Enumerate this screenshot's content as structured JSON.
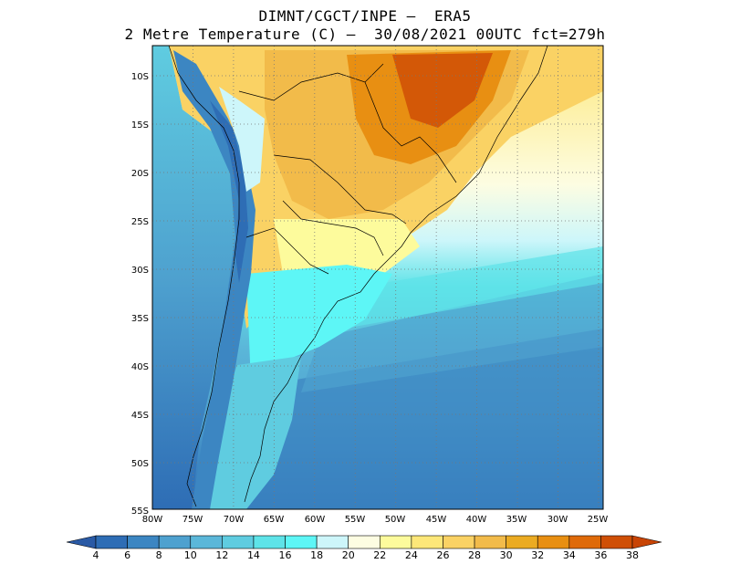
{
  "title": {
    "line1": "DIMNT/CGCT/INPE –  ERA5",
    "line2": "2 Metre Temperature (C) –  30/08/2021 00UTC fct=279h"
  },
  "lat_labels": [
    "10S",
    "15S",
    "20S",
    "25S",
    "30S",
    "35S",
    "40S",
    "45S",
    "50S",
    "55S"
  ],
  "lon_labels": [
    "80W",
    "75W",
    "70W",
    "65W",
    "60W",
    "55W",
    "50W",
    "45W",
    "40W",
    "35W",
    "30W",
    "25W"
  ],
  "colorbar": {
    "labels": [
      "4",
      "6",
      "8",
      "10",
      "12",
      "14",
      "16",
      "18",
      "20",
      "22",
      "24",
      "26",
      "28",
      "30",
      "32",
      "34",
      "36",
      "38"
    ],
    "colors": [
      "#2e6db5",
      "#3c86c2",
      "#4ea1cf",
      "#5bb7d9",
      "#5fcce0",
      "#5ee3e8",
      "#5df6f6",
      "#cdf6fa",
      "#fdfde2",
      "#fdfb9c",
      "#fde779",
      "#fad264",
      "#f2bb4a",
      "#ebab22",
      "#e88f12",
      "#df6a09",
      "#cf4f06"
    ],
    "low_color": "#2a5aa5",
    "high_color": "#c84405"
  },
  "map": {
    "ocean_label_colors": [
      "#2a62ad",
      "#3a80bd",
      "#4aa0cb",
      "#5cc7df",
      "#5ef0f0"
    ]
  }
}
